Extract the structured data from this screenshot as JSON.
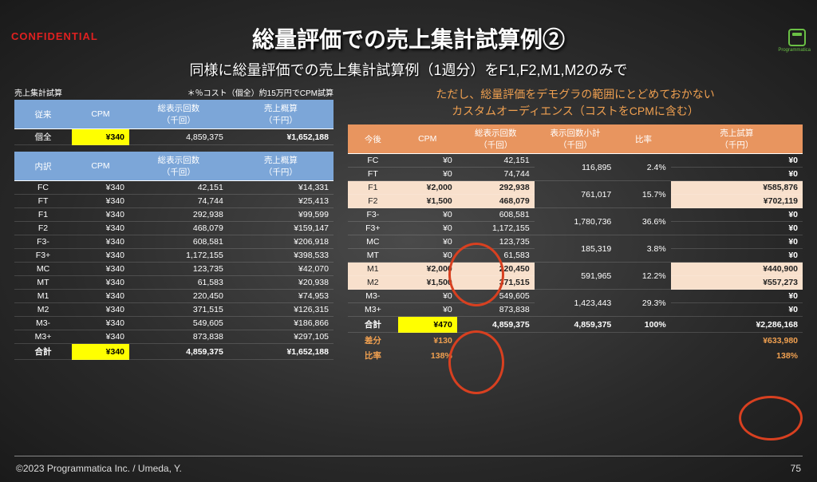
{
  "confidential": "CONFIDENTIAL",
  "logo_label": "Programmatica",
  "title": "総量評価での売上集計試算例②",
  "subtitle": "同様に総量評価での売上集計試算例（1週分）をF1,F2,M1,M2のみで",
  "left_note_l": "売上集計試算",
  "left_note_r": "＊％コスト（個全）約15万円でCPM試算",
  "left_header1": {
    "c1": "従来",
    "c2": "CPM",
    "c3": "総表示回数\n（千回）",
    "c4": "売上概算\n（千円）"
  },
  "left_row_all": {
    "label": "個全",
    "cpm": "¥340",
    "imp": "4,859,375",
    "rev": "¥1,652,188"
  },
  "left_header2": {
    "c1": "内訳",
    "c2": "CPM",
    "c3": "総表示回数\n（千回）",
    "c4": "売上概算\n（千円）"
  },
  "left_rows": [
    {
      "label": "FC",
      "cpm": "¥340",
      "imp": "42,151",
      "rev": "¥14,331"
    },
    {
      "label": "FT",
      "cpm": "¥340",
      "imp": "74,744",
      "rev": "¥25,413"
    },
    {
      "label": "F1",
      "cpm": "¥340",
      "imp": "292,938",
      "rev": "¥99,599"
    },
    {
      "label": "F2",
      "cpm": "¥340",
      "imp": "468,079",
      "rev": "¥159,147"
    },
    {
      "label": "F3-",
      "cpm": "¥340",
      "imp": "608,581",
      "rev": "¥206,918"
    },
    {
      "label": "F3+",
      "cpm": "¥340",
      "imp": "1,172,155",
      "rev": "¥398,533"
    },
    {
      "label": "MC",
      "cpm": "¥340",
      "imp": "123,735",
      "rev": "¥42,070"
    },
    {
      "label": "MT",
      "cpm": "¥340",
      "imp": "61,583",
      "rev": "¥20,938"
    },
    {
      "label": "M1",
      "cpm": "¥340",
      "imp": "220,450",
      "rev": "¥74,953"
    },
    {
      "label": "M2",
      "cpm": "¥340",
      "imp": "371,515",
      "rev": "¥126,315"
    },
    {
      "label": "M3-",
      "cpm": "¥340",
      "imp": "549,605",
      "rev": "¥186,866"
    },
    {
      "label": "M3+",
      "cpm": "¥340",
      "imp": "873,838",
      "rev": "¥297,105"
    }
  ],
  "left_sum": {
    "label": "合計",
    "cpm": "¥340",
    "imp": "4,859,375",
    "rev": "¥1,652,188"
  },
  "right_note_1": "ただし、総量評価をデモグラの範囲にとどめておかない",
  "right_note_2": "カスタムオーディエンス（コストをCPMに含む）",
  "right_header": {
    "c1": "今後",
    "c2": "CPM",
    "c3": "総表示回数\n（千回）",
    "c4": "表示回数小計\n（千回）",
    "c5": "比率",
    "c6": "売上試算\n（千円）"
  },
  "right_rows": [
    {
      "label": "FC",
      "cpm": "¥0",
      "imp": "42,151",
      "sub": "116,895",
      "ratio": "2.4%",
      "rev": "¥0",
      "hl": false,
      "span": 2
    },
    {
      "label": "FT",
      "cpm": "¥0",
      "imp": "74,744",
      "rev": "¥0",
      "hl": false
    },
    {
      "label": "F1",
      "cpm": "¥2,000",
      "imp": "292,938",
      "sub": "761,017",
      "ratio": "15.7%",
      "rev": "¥585,876",
      "hl": true,
      "span": 2
    },
    {
      "label": "F2",
      "cpm": "¥1,500",
      "imp": "468,079",
      "rev": "¥702,119",
      "hl": true
    },
    {
      "label": "F3-",
      "cpm": "¥0",
      "imp": "608,581",
      "sub": "1,780,736",
      "ratio": "36.6%",
      "rev": "¥0",
      "hl": false,
      "span": 2
    },
    {
      "label": "F3+",
      "cpm": "¥0",
      "imp": "1,172,155",
      "rev": "¥0",
      "hl": false
    },
    {
      "label": "MC",
      "cpm": "¥0",
      "imp": "123,735",
      "sub": "185,319",
      "ratio": "3.8%",
      "rev": "¥0",
      "hl": false,
      "span": 2
    },
    {
      "label": "MT",
      "cpm": "¥0",
      "imp": "61,583",
      "rev": "¥0",
      "hl": false
    },
    {
      "label": "M1",
      "cpm": "¥2,000",
      "imp": "220,450",
      "sub": "591,965",
      "ratio": "12.2%",
      "rev": "¥440,900",
      "hl": true,
      "span": 2
    },
    {
      "label": "M2",
      "cpm": "¥1,500",
      "imp": "371,515",
      "rev": "¥557,273",
      "hl": true
    },
    {
      "label": "M3-",
      "cpm": "¥0",
      "imp": "549,605",
      "sub": "1,423,443",
      "ratio": "29.3%",
      "rev": "¥0",
      "hl": false,
      "span": 2
    },
    {
      "label": "M3+",
      "cpm": "¥0",
      "imp": "873,838",
      "rev": "¥0",
      "hl": false
    }
  ],
  "right_sum": {
    "label": "合計",
    "cpm": "¥470",
    "imp": "4,859,375",
    "sub": "4,859,375",
    "ratio": "100%",
    "rev": "¥2,286,168"
  },
  "diff1": {
    "label": "差分",
    "cpm": "¥130",
    "rev": "¥633,980"
  },
  "diff2": {
    "label": "比率",
    "cpm": "138%",
    "rev": "138%"
  },
  "footer_l": "©2023  Programmatica Inc. / Umeda, Y.",
  "footer_r": "75"
}
